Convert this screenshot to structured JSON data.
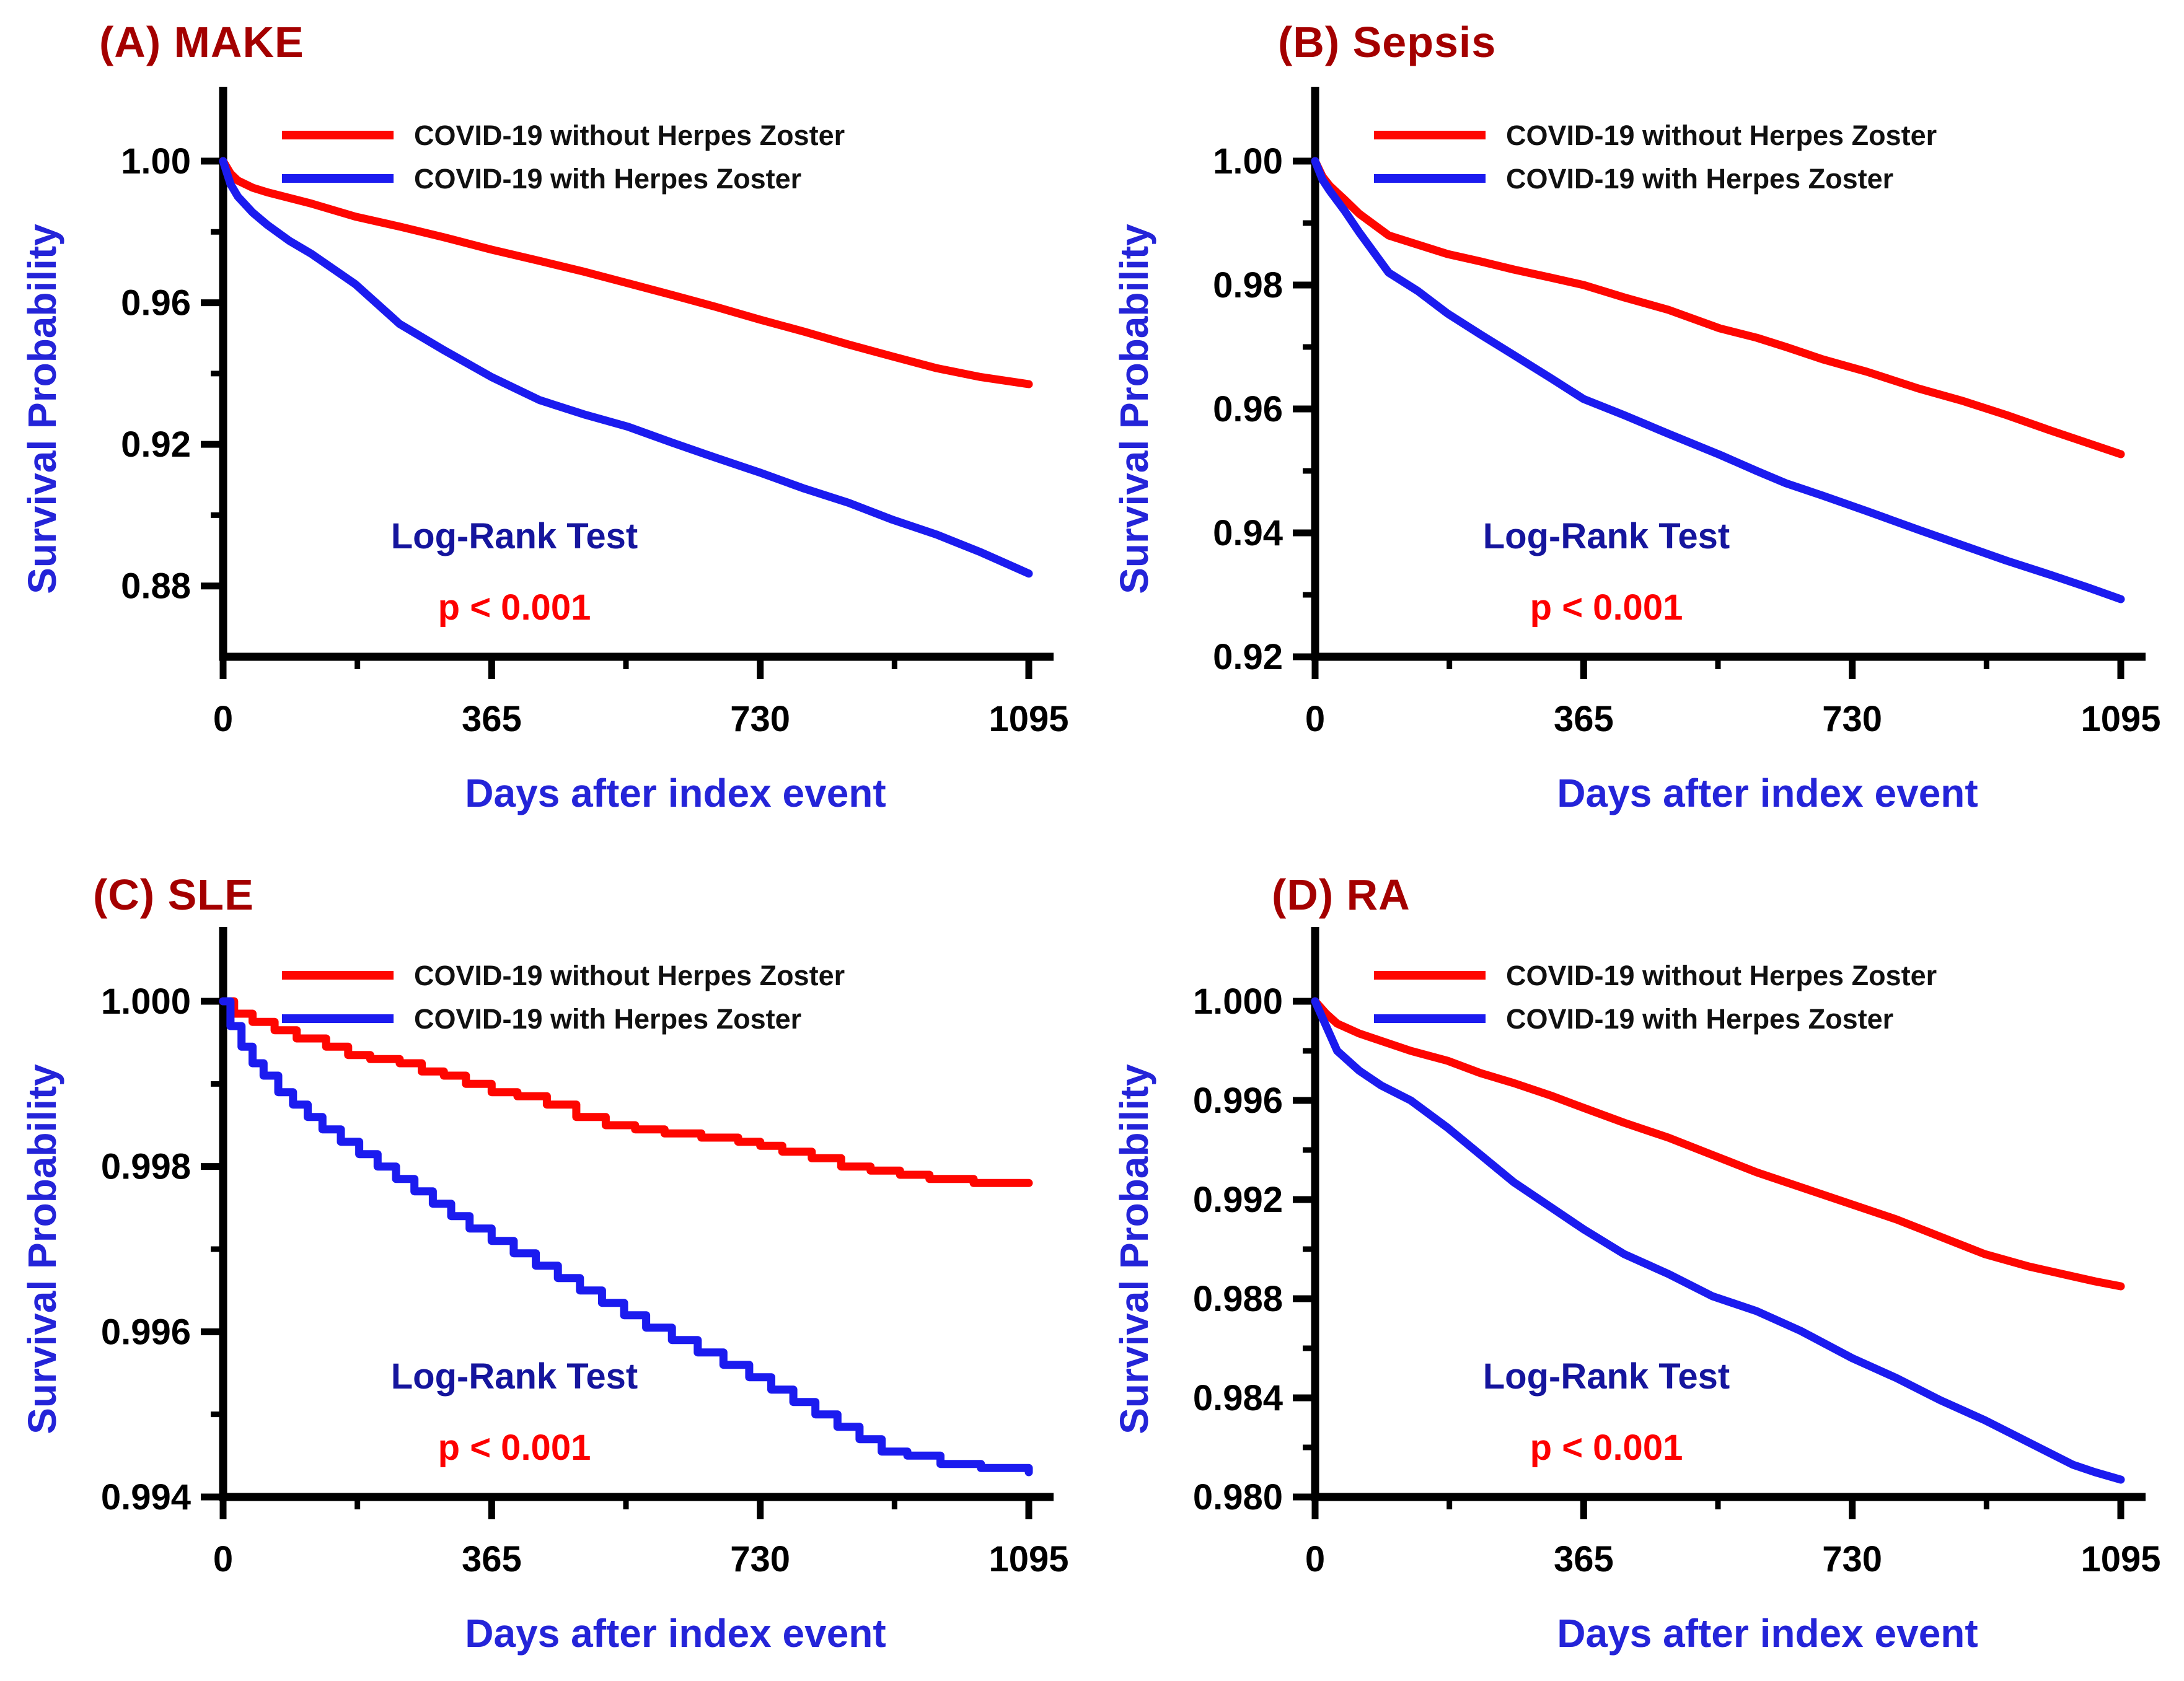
{
  "figure": {
    "background": "#ffffff",
    "description": "Kaplan-Meier survival curves, four panels comparing COVID-19 patients with vs without Herpes Zoster"
  },
  "colors": {
    "curve_without_hz": "#fe0600",
    "curve_with_hz": "#1b1bef",
    "panel_title": "#a40000",
    "axis_label": "#2424d8",
    "annotation_test": "#15159d",
    "annotation_p": "#fd0000",
    "tick_label": "#000000",
    "axis_line": "#000000",
    "legend_text": "#111111"
  },
  "shared": {
    "x_label": "Days after index event",
    "y_label": "Survival Probability",
    "legend": [
      {
        "label": "COVID-19 without Herpes Zoster",
        "color_key": "curve_without_hz"
      },
      {
        "label": "COVID-19 with Herpes Zoster",
        "color_key": "curve_with_hz"
      }
    ],
    "annotation": {
      "line1": "Log-Rank Test",
      "line2": "p < 0.001"
    },
    "x_ticks": [
      0,
      365,
      730,
      1095
    ],
    "x_minor_ticks": [
      182.5,
      547.5,
      912.5
    ],
    "grid": false,
    "legend_position": "top-left-inside"
  },
  "chart_data": [
    {
      "id": "A",
      "type": "line",
      "title": "(A) MAKE",
      "xlabel": "Days after index event",
      "ylabel": "Survival Probability",
      "xlim": [
        0,
        1095
      ],
      "ylim": [
        0.86,
        1.0
      ],
      "y_ticks": [
        1.0,
        0.96,
        0.92,
        0.88
      ],
      "y_minor_ticks": [
        0.98,
        0.94,
        0.9
      ],
      "tick_decimals": 2,
      "step": false,
      "series": [
        {
          "name": "COVID-19 without Herpes Zoster",
          "color_key": "curve_without_hz",
          "points": [
            [
              0,
              1.0
            ],
            [
              10,
              0.9965
            ],
            [
              20,
              0.9945
            ],
            [
              40,
              0.9925
            ],
            [
              60,
              0.9912
            ],
            [
              90,
              0.9896
            ],
            [
              120,
              0.988
            ],
            [
              180,
              0.9843
            ],
            [
              240,
              0.9815
            ],
            [
              300,
              0.9785
            ],
            [
              365,
              0.975
            ],
            [
              430,
              0.9718
            ],
            [
              490,
              0.9688
            ],
            [
              550,
              0.9655
            ],
            [
              610,
              0.9622
            ],
            [
              670,
              0.9588
            ],
            [
              730,
              0.9552
            ],
            [
              790,
              0.9518
            ],
            [
              850,
              0.9482
            ],
            [
              910,
              0.9448
            ],
            [
              970,
              0.9415
            ],
            [
              1030,
              0.939
            ],
            [
              1095,
              0.937
            ]
          ]
        },
        {
          "name": "COVID-19 with Herpes Zoster",
          "color_key": "curve_with_hz",
          "points": [
            [
              0,
              1.0
            ],
            [
              10,
              0.9935
            ],
            [
              20,
              0.99
            ],
            [
              40,
              0.9855
            ],
            [
              60,
              0.982
            ],
            [
              90,
              0.9775
            ],
            [
              120,
              0.9738
            ],
            [
              180,
              0.9652
            ],
            [
              240,
              0.954
            ],
            [
              300,
              0.9466
            ],
            [
              365,
              0.939
            ],
            [
              430,
              0.9325
            ],
            [
              490,
              0.9285
            ],
            [
              550,
              0.925
            ],
            [
              610,
              0.9205
            ],
            [
              670,
              0.9162
            ],
            [
              730,
              0.912
            ],
            [
              790,
              0.9075
            ],
            [
              850,
              0.9035
            ],
            [
              910,
              0.8987
            ],
            [
              970,
              0.8945
            ],
            [
              1030,
              0.8895
            ],
            [
              1095,
              0.8835
            ]
          ]
        }
      ]
    },
    {
      "id": "B",
      "type": "line",
      "title": "(B) Sepsis",
      "xlabel": "Days after index event",
      "ylabel": "Survival Probability",
      "xlim": [
        0,
        1095
      ],
      "ylim": [
        0.92,
        1.0
      ],
      "y_ticks": [
        1.0,
        0.98,
        0.96,
        0.94,
        0.92
      ],
      "y_minor_ticks": [
        0.99,
        0.97,
        0.95,
        0.93
      ],
      "tick_decimals": 2,
      "step": false,
      "series": [
        {
          "name": "COVID-19 without Herpes Zoster",
          "color_key": "curve_without_hz",
          "points": [
            [
              0,
              1.0
            ],
            [
              10,
              0.9975
            ],
            [
              20,
              0.996
            ],
            [
              40,
              0.9938
            ],
            [
              60,
              0.9915
            ],
            [
              100,
              0.988
            ],
            [
              140,
              0.9865
            ],
            [
              180,
              0.985
            ],
            [
              225,
              0.9838
            ],
            [
              270,
              0.9825
            ],
            [
              320,
              0.9812
            ],
            [
              365,
              0.98
            ],
            [
              420,
              0.978
            ],
            [
              480,
              0.976
            ],
            [
              550,
              0.973
            ],
            [
              600,
              0.9715
            ],
            [
              640,
              0.97
            ],
            [
              690,
              0.968
            ],
            [
              750,
              0.966
            ],
            [
              820,
              0.9633
            ],
            [
              880,
              0.9613
            ],
            [
              940,
              0.959
            ],
            [
              1000,
              0.9565
            ],
            [
              1050,
              0.9545
            ],
            [
              1095,
              0.9527
            ]
          ]
        },
        {
          "name": "COVID-19 with Herpes Zoster",
          "color_key": "curve_with_hz",
          "points": [
            [
              0,
              1.0
            ],
            [
              10,
              0.997
            ],
            [
              20,
              0.9952
            ],
            [
              40,
              0.992
            ],
            [
              60,
              0.9885
            ],
            [
              100,
              0.982
            ],
            [
              140,
              0.979
            ],
            [
              180,
              0.9754
            ],
            [
              225,
              0.972
            ],
            [
              270,
              0.9687
            ],
            [
              320,
              0.965
            ],
            [
              365,
              0.9616
            ],
            [
              420,
              0.959
            ],
            [
              480,
              0.956
            ],
            [
              550,
              0.9526
            ],
            [
              600,
              0.95
            ],
            [
              640,
              0.948
            ],
            [
              690,
              0.946
            ],
            [
              750,
              0.9435
            ],
            [
              820,
              0.9405
            ],
            [
              880,
              0.938
            ],
            [
              940,
              0.9355
            ],
            [
              1000,
              0.9332
            ],
            [
              1050,
              0.9312
            ],
            [
              1095,
              0.9293
            ]
          ]
        }
      ]
    },
    {
      "id": "C",
      "type": "line",
      "title": "(C) SLE",
      "xlabel": "Days after index event",
      "ylabel": "Survival Probability",
      "xlim": [
        0,
        1095
      ],
      "ylim": [
        0.994,
        1.0
      ],
      "y_ticks": [
        1.0,
        0.998,
        0.996,
        0.994
      ],
      "y_minor_ticks": [
        0.999,
        0.997,
        0.995
      ],
      "tick_decimals": 3,
      "step": true,
      "series": [
        {
          "name": "COVID-19 without Herpes Zoster",
          "color_key": "curve_without_hz",
          "points": [
            [
              0,
              1.0
            ],
            [
              15,
              0.99985
            ],
            [
              40,
              0.99975
            ],
            [
              70,
              0.99965
            ],
            [
              100,
              0.99955
            ],
            [
              140,
              0.99945
            ],
            [
              170,
              0.99935
            ],
            [
              200,
              0.9993
            ],
            [
              240,
              0.99925
            ],
            [
              270,
              0.99915
            ],
            [
              300,
              0.9991
            ],
            [
              330,
              0.999
            ],
            [
              365,
              0.9989
            ],
            [
              400,
              0.99885
            ],
            [
              440,
              0.99875
            ],
            [
              480,
              0.9986
            ],
            [
              520,
              0.9985
            ],
            [
              560,
              0.99845
            ],
            [
              600,
              0.9984
            ],
            [
              650,
              0.99835
            ],
            [
              700,
              0.9983
            ],
            [
              730,
              0.99825
            ],
            [
              760,
              0.99818
            ],
            [
              800,
              0.9981
            ],
            [
              840,
              0.998
            ],
            [
              880,
              0.99795
            ],
            [
              920,
              0.9979
            ],
            [
              960,
              0.99785
            ],
            [
              1020,
              0.9978
            ],
            [
              1095,
              0.9978
            ]
          ]
        },
        {
          "name": "COVID-19 with Herpes Zoster",
          "color_key": "curve_with_hz",
          "points": [
            [
              0,
              1.0
            ],
            [
              10,
              0.9997
            ],
            [
              25,
              0.99945
            ],
            [
              40,
              0.99925
            ],
            [
              55,
              0.9991
            ],
            [
              75,
              0.9989
            ],
            [
              95,
              0.99875
            ],
            [
              115,
              0.9986
            ],
            [
              135,
              0.99845
            ],
            [
              160,
              0.9983
            ],
            [
              185,
              0.99815
            ],
            [
              210,
              0.998
            ],
            [
              235,
              0.99785
            ],
            [
              260,
              0.9977
            ],
            [
              285,
              0.99755
            ],
            [
              310,
              0.9974
            ],
            [
              335,
              0.99725
            ],
            [
              365,
              0.9971
            ],
            [
              395,
              0.99695
            ],
            [
              425,
              0.9968
            ],
            [
              455,
              0.99665
            ],
            [
              485,
              0.9965
            ],
            [
              515,
              0.99635
            ],
            [
              545,
              0.9962
            ],
            [
              575,
              0.99605
            ],
            [
              610,
              0.9959
            ],
            [
              645,
              0.99575
            ],
            [
              680,
              0.9956
            ],
            [
              715,
              0.99545
            ],
            [
              745,
              0.9953
            ],
            [
              775,
              0.99515
            ],
            [
              805,
              0.995
            ],
            [
              835,
              0.99485
            ],
            [
              865,
              0.9947
            ],
            [
              895,
              0.99455
            ],
            [
              930,
              0.9945
            ],
            [
              975,
              0.9944
            ],
            [
              1030,
              0.99435
            ],
            [
              1095,
              0.9943
            ]
          ]
        }
      ]
    },
    {
      "id": "D",
      "type": "line",
      "title": "(D) RA",
      "xlabel": "Days after index event",
      "ylabel": "Survival Probability",
      "xlim": [
        0,
        1095
      ],
      "ylim": [
        0.98,
        1.0
      ],
      "y_ticks": [
        1.0,
        0.996,
        0.992,
        0.988,
        0.984,
        0.98
      ],
      "y_minor_ticks": [
        0.998,
        0.994,
        0.99,
        0.986,
        0.982
      ],
      "tick_decimals": 3,
      "step": false,
      "series": [
        {
          "name": "COVID-19 without Herpes Zoster",
          "color_key": "curve_without_hz",
          "points": [
            [
              0,
              1.0
            ],
            [
              15,
              0.9995
            ],
            [
              30,
              0.9991
            ],
            [
              60,
              0.9987
            ],
            [
              90,
              0.9984
            ],
            [
              130,
              0.998
            ],
            [
              180,
              0.9976
            ],
            [
              225,
              0.9971
            ],
            [
              270,
              0.9967
            ],
            [
              320,
              0.9962
            ],
            [
              365,
              0.9957
            ],
            [
              420,
              0.9951
            ],
            [
              480,
              0.9945
            ],
            [
              540,
              0.9938
            ],
            [
              600,
              0.9931
            ],
            [
              660,
              0.9925
            ],
            [
              730,
              0.9918
            ],
            [
              790,
              0.9912
            ],
            [
              850,
              0.9905
            ],
            [
              910,
              0.9898
            ],
            [
              970,
              0.9893
            ],
            [
              1030,
              0.9889
            ],
            [
              1060,
              0.9887
            ],
            [
              1095,
              0.9885
            ]
          ]
        },
        {
          "name": "COVID-19 with Herpes Zoster",
          "color_key": "curve_with_hz",
          "points": [
            [
              0,
              1.0
            ],
            [
              15,
              0.999
            ],
            [
              30,
              0.998
            ],
            [
              45,
              0.9976
            ],
            [
              60,
              0.9972
            ],
            [
              90,
              0.9966
            ],
            [
              130,
              0.996
            ],
            [
              180,
              0.9949
            ],
            [
              225,
              0.9938
            ],
            [
              270,
              0.9927
            ],
            [
              320,
              0.9917
            ],
            [
              365,
              0.9908
            ],
            [
              420,
              0.9898
            ],
            [
              480,
              0.989
            ],
            [
              540,
              0.9881
            ],
            [
              600,
              0.9875
            ],
            [
              660,
              0.9867
            ],
            [
              730,
              0.9856
            ],
            [
              790,
              0.9848
            ],
            [
              850,
              0.9839
            ],
            [
              910,
              0.9831
            ],
            [
              970,
              0.9822
            ],
            [
              1030,
              0.9813
            ],
            [
              1060,
              0.981
            ],
            [
              1095,
              0.9807
            ]
          ]
        }
      ]
    }
  ]
}
